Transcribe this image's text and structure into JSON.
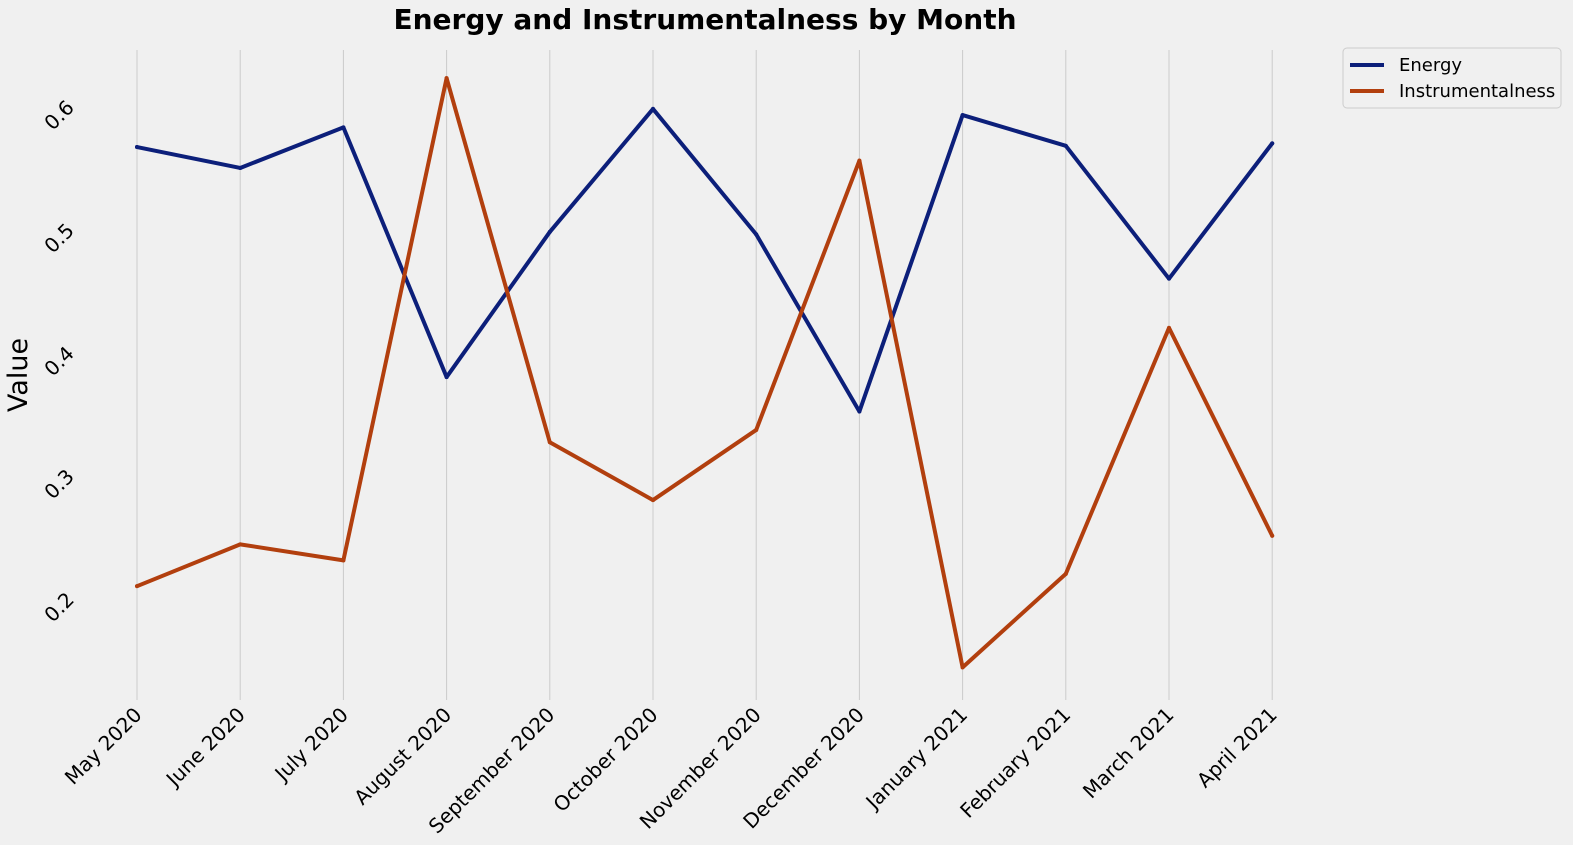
{
  "chart_data": {
    "type": "line",
    "title": "Energy and Instrumentalness by Month",
    "xlabel": "",
    "ylabel": "Value",
    "categories": [
      "May 2020",
      "June 2020",
      "July 2020",
      "August 2020",
      "September 2020",
      "October 2020",
      "November 2020",
      "December 2020",
      "January 2021",
      "February 2021",
      "March 2021",
      "April 2021"
    ],
    "yticks": [
      "0.2",
      "0.3",
      "0.4",
      "0.5",
      "0.6"
    ],
    "series": [
      {
        "name": "Energy",
        "color": "#0c1f7a",
        "values": [
          0.578,
          0.561,
          0.594,
          0.391,
          0.509,
          0.609,
          0.507,
          0.363,
          0.604,
          0.579,
          0.471,
          0.581
        ]
      },
      {
        "name": "Instrumentalness",
        "color": "#b23f0e",
        "values": [
          0.221,
          0.255,
          0.242,
          0.634,
          0.338,
          0.291,
          0.348,
          0.567,
          0.155,
          0.231,
          0.431,
          0.262
        ]
      }
    ],
    "grid": "vertical",
    "legend": "outside-top-right",
    "ylim": [
      0.13,
      0.66
    ]
  }
}
